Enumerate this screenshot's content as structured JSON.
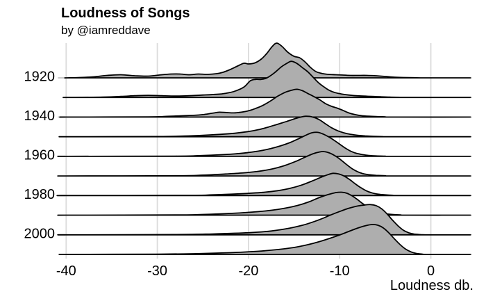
{
  "title": "Loudness of Songs",
  "subtitle": "by @iamreddave",
  "x_axis": {
    "label": "Loudness db.",
    "tick_labels": [
      "-40",
      "-30",
      "-20",
      "-10",
      "0"
    ]
  },
  "y_axis": {
    "tick_labels": [
      "1920",
      "1940",
      "1960",
      "1980",
      "2000"
    ]
  },
  "colors": {
    "ridge_fill": "#AEAEAE",
    "ridge_stroke": "#000000",
    "grid": "#DBDBDB",
    "axis_tick": "#C9C9C9",
    "text": "#000000",
    "background": "#FFFFFF"
  },
  "chart_data": {
    "type": "area",
    "variant": "ridgeline",
    "title": "Loudness of Songs",
    "subtitle": "by @iamreddave",
    "xlabel": "Loudness db.",
    "ylabel": "",
    "xlim": [
      -40.1,
      4.4
    ],
    "x_ticks": [
      -40,
      -30,
      -20,
      -10,
      0
    ],
    "grid": "vertical-only",
    "legend": "none",
    "density_unit": "px-height-relative",
    "rows": [
      {
        "year": "1920",
        "axis_label_shown": true,
        "points": [
          [
            -40,
            0
          ],
          [
            -38.5,
            0.5
          ],
          [
            -37,
            1.5
          ],
          [
            -35.5,
            3.5
          ],
          [
            -34,
            4.5
          ],
          [
            -32.5,
            3
          ],
          [
            -31,
            2.5
          ],
          [
            -29.5,
            4.5
          ],
          [
            -28.5,
            5.5
          ],
          [
            -27.5,
            5.5
          ],
          [
            -26.5,
            4.5
          ],
          [
            -25.5,
            5.5
          ],
          [
            -24.5,
            5
          ],
          [
            -23.5,
            6
          ],
          [
            -22.8,
            8
          ],
          [
            -22,
            12
          ],
          [
            -21.2,
            17
          ],
          [
            -20.5,
            21
          ],
          [
            -20,
            20
          ],
          [
            -19.3,
            21.5
          ],
          [
            -18.6,
            27
          ],
          [
            -18,
            35
          ],
          [
            -17.4,
            45
          ],
          [
            -16.9,
            50
          ],
          [
            -16.3,
            45
          ],
          [
            -15.7,
            37
          ],
          [
            -15,
            31
          ],
          [
            -14.4,
            29
          ],
          [
            -13.8,
            23
          ],
          [
            -13.2,
            15
          ],
          [
            -12.6,
            9
          ],
          [
            -12,
            6.5
          ],
          [
            -11.2,
            5
          ],
          [
            -10.4,
            4.5
          ],
          [
            -9.6,
            4
          ],
          [
            -8.8,
            3.5
          ],
          [
            -8,
            3.5
          ],
          [
            -7,
            3.5
          ],
          [
            -6,
            3
          ],
          [
            -5,
            2
          ],
          [
            -4,
            1
          ],
          [
            -3,
            0.5
          ],
          [
            -1.8,
            0.2
          ],
          [
            -0.5,
            0
          ]
        ]
      },
      {
        "year": "1930",
        "axis_label_shown": false,
        "points": [
          [
            -40,
            0
          ],
          [
            -36,
            0.5
          ],
          [
            -34,
            1.5
          ],
          [
            -32.5,
            2.5
          ],
          [
            -31,
            3
          ],
          [
            -29.5,
            2.5
          ],
          [
            -28,
            2
          ],
          [
            -26.5,
            2.5
          ],
          [
            -25,
            3.5
          ],
          [
            -23.5,
            4.5
          ],
          [
            -22.5,
            6
          ],
          [
            -21.5,
            9
          ],
          [
            -20.5,
            15
          ],
          [
            -19.8,
            24
          ],
          [
            -19.2,
            26
          ],
          [
            -18.6,
            26
          ],
          [
            -18,
            28
          ],
          [
            -17.2,
            35
          ],
          [
            -16.4,
            44
          ],
          [
            -15.8,
            49
          ],
          [
            -15.3,
            52
          ],
          [
            -14.7,
            49
          ],
          [
            -14.1,
            43
          ],
          [
            -13.5,
            37
          ],
          [
            -12.9,
            29
          ],
          [
            -12.3,
            21
          ],
          [
            -11.7,
            15
          ],
          [
            -11.1,
            10
          ],
          [
            -10.5,
            7
          ],
          [
            -9.8,
            5
          ],
          [
            -9,
            3.5
          ],
          [
            -8.2,
            2.5
          ],
          [
            -7.4,
            2
          ],
          [
            -6.5,
            1.5
          ],
          [
            -5.5,
            1
          ],
          [
            -4.5,
            0.5
          ],
          [
            -3.5,
            0.2
          ],
          [
            -2.5,
            0
          ]
        ]
      },
      {
        "year": "1940",
        "axis_label_shown": true,
        "points": [
          [
            -40,
            0
          ],
          [
            -31,
            0.3
          ],
          [
            -29,
            1
          ],
          [
            -27.5,
            1.8
          ],
          [
            -26,
            2.5
          ],
          [
            -25,
            3.5
          ],
          [
            -24,
            5.5
          ],
          [
            -23.2,
            7
          ],
          [
            -22.4,
            6.5
          ],
          [
            -21.6,
            6
          ],
          [
            -20.8,
            7
          ],
          [
            -20,
            9
          ],
          [
            -19.2,
            12.5
          ],
          [
            -18.4,
            17
          ],
          [
            -17.6,
            23
          ],
          [
            -16.8,
            30
          ],
          [
            -16,
            35.5
          ],
          [
            -15.3,
            38.5
          ],
          [
            -14.7,
            40
          ],
          [
            -14.1,
            38
          ],
          [
            -13.5,
            34
          ],
          [
            -12.9,
            30
          ],
          [
            -12.2,
            25
          ],
          [
            -11.5,
            19
          ],
          [
            -10.9,
            15.5
          ],
          [
            -10.3,
            13
          ],
          [
            -9.7,
            10
          ],
          [
            -9,
            6
          ],
          [
            -8.3,
            3.5
          ],
          [
            -7.6,
            2
          ],
          [
            -6.8,
            1.2
          ],
          [
            -6,
            0.7
          ],
          [
            -5,
            0.3
          ],
          [
            -4,
            0
          ]
        ]
      },
      {
        "year": "1950",
        "axis_label_shown": false,
        "points": [
          [
            -40,
            0
          ],
          [
            -30,
            0.3
          ],
          [
            -27,
            1
          ],
          [
            -25,
            2
          ],
          [
            -23,
            3.5
          ],
          [
            -21.5,
            5
          ],
          [
            -20,
            7.5
          ],
          [
            -18.8,
            10.5
          ],
          [
            -17.8,
            14
          ],
          [
            -16.8,
            18
          ],
          [
            -15.8,
            22
          ],
          [
            -14.9,
            26
          ],
          [
            -14.2,
            28.5
          ],
          [
            -13.7,
            29.5
          ],
          [
            -13,
            28.5
          ],
          [
            -12.3,
            25
          ],
          [
            -11.6,
            19
          ],
          [
            -10.9,
            13
          ],
          [
            -10.2,
            8.5
          ],
          [
            -9.5,
            5.5
          ],
          [
            -8.8,
            3.5
          ],
          [
            -8,
            2
          ],
          [
            -7.2,
            1.2
          ],
          [
            -6.3,
            0.6
          ],
          [
            -5.3,
            0.2
          ],
          [
            -4.3,
            0
          ]
        ]
      },
      {
        "year": "1960",
        "axis_label_shown": true,
        "points": [
          [
            -40,
            0
          ],
          [
            -28,
            0.3
          ],
          [
            -25.5,
            1
          ],
          [
            -23.5,
            2
          ],
          [
            -21.5,
            3.5
          ],
          [
            -20,
            5.5
          ],
          [
            -18.7,
            8
          ],
          [
            -17.6,
            11
          ],
          [
            -16.5,
            15
          ],
          [
            -15.4,
            20
          ],
          [
            -14.4,
            26
          ],
          [
            -13.6,
            31
          ],
          [
            -13,
            34
          ],
          [
            -12.4,
            34.5
          ],
          [
            -11.8,
            32
          ],
          [
            -11.2,
            28
          ],
          [
            -10.6,
            23
          ],
          [
            -10,
            17.5
          ],
          [
            -9.4,
            12
          ],
          [
            -8.8,
            7.5
          ],
          [
            -8.2,
            4.5
          ],
          [
            -7.5,
            2.5
          ],
          [
            -6.8,
            1.3
          ],
          [
            -6,
            0.6
          ],
          [
            -5,
            0.2
          ],
          [
            -4.2,
            0
          ]
        ]
      },
      {
        "year": "1970",
        "axis_label_shown": false,
        "points": [
          [
            -40,
            0
          ],
          [
            -28,
            0.3
          ],
          [
            -25,
            1.2
          ],
          [
            -22.5,
            2.8
          ],
          [
            -20.5,
            4.5
          ],
          [
            -19,
            6.5
          ],
          [
            -17.8,
            9
          ],
          [
            -16.8,
            12
          ],
          [
            -15.8,
            16
          ],
          [
            -14.8,
            21
          ],
          [
            -13.8,
            27
          ],
          [
            -12.9,
            32
          ],
          [
            -12.2,
            34.5
          ],
          [
            -11.7,
            35
          ],
          [
            -11.1,
            33
          ],
          [
            -10.5,
            29
          ],
          [
            -9.9,
            23.5
          ],
          [
            -9.3,
            17
          ],
          [
            -8.7,
            11
          ],
          [
            -8.1,
            6.5
          ],
          [
            -7.5,
            3.5
          ],
          [
            -6.8,
            1.8
          ],
          [
            -6,
            0.8
          ],
          [
            -5,
            0.3
          ],
          [
            -4.2,
            0
          ]
        ]
      },
      {
        "year": "1980",
        "axis_label_shown": true,
        "points": [
          [
            -40,
            0
          ],
          [
            -27,
            0.3
          ],
          [
            -24,
            1
          ],
          [
            -21,
            2.5
          ],
          [
            -18.5,
            4.5
          ],
          [
            -16.8,
            7
          ],
          [
            -15.4,
            10.5
          ],
          [
            -14.2,
            15
          ],
          [
            -13.1,
            20.5
          ],
          [
            -12.1,
            26
          ],
          [
            -11.3,
            30
          ],
          [
            -10.7,
            32
          ],
          [
            -10.1,
            31
          ],
          [
            -9.5,
            28
          ],
          [
            -8.9,
            23
          ],
          [
            -8.3,
            17
          ],
          [
            -7.7,
            11.5
          ],
          [
            -7.1,
            7
          ],
          [
            -6.5,
            4
          ],
          [
            -5.8,
            2
          ],
          [
            -5,
            1
          ],
          [
            -4.2,
            0.4
          ],
          [
            -3.4,
            0
          ]
        ]
      },
      {
        "year": "1990",
        "axis_label_shown": false,
        "points": [
          [
            -40,
            0
          ],
          [
            -28,
            0.3
          ],
          [
            -25,
            1
          ],
          [
            -22,
            2.5
          ],
          [
            -19.5,
            4.5
          ],
          [
            -17.5,
            7
          ],
          [
            -16,
            10
          ],
          [
            -14.6,
            14
          ],
          [
            -13.4,
            19
          ],
          [
            -12.3,
            25
          ],
          [
            -11.3,
            29.5
          ],
          [
            -10.4,
            32.5
          ],
          [
            -9.8,
            33
          ],
          [
            -9.2,
            31.5
          ],
          [
            -8.6,
            27.5
          ],
          [
            -8,
            22
          ],
          [
            -7.4,
            16
          ],
          [
            -6.8,
            11
          ],
          [
            -6.2,
            6.5
          ],
          [
            -5.6,
            3.5
          ],
          [
            -4.9,
            1.8
          ],
          [
            -4.1,
            0.8
          ],
          [
            -3.3,
            0.3
          ],
          [
            -2.5,
            0
          ]
        ]
      },
      {
        "year": "2000",
        "axis_label_shown": true,
        "points": [
          [
            -40,
            0
          ],
          [
            -28,
            0.4
          ],
          [
            -24,
            1.2
          ],
          [
            -20,
            3
          ],
          [
            -17.5,
            5.5
          ],
          [
            -15.5,
            9.5
          ],
          [
            -14,
            14
          ],
          [
            -12.8,
            19
          ],
          [
            -11.8,
            24
          ],
          [
            -10.8,
            29.5
          ],
          [
            -9.8,
            34.5
          ],
          [
            -8.9,
            38.5
          ],
          [
            -8,
            41.5
          ],
          [
            -7.2,
            43
          ],
          [
            -6.6,
            43.5
          ],
          [
            -6,
            42
          ],
          [
            -5.4,
            37.5
          ],
          [
            -4.8,
            30
          ],
          [
            -4.2,
            21
          ],
          [
            -3.6,
            13
          ],
          [
            -3,
            6.5
          ],
          [
            -2.4,
            2.8
          ],
          [
            -1.8,
            1
          ],
          [
            -1.1,
            0.3
          ],
          [
            -0.4,
            0
          ]
        ]
      },
      {
        "year": "2010",
        "axis_label_shown": false,
        "points": [
          [
            -40,
            0
          ],
          [
            -30,
            0.4
          ],
          [
            -26,
            1
          ],
          [
            -22,
            2.5
          ],
          [
            -19,
            4.5
          ],
          [
            -16.8,
            7
          ],
          [
            -15,
            10
          ],
          [
            -13.5,
            14
          ],
          [
            -12.2,
            18.5
          ],
          [
            -11,
            23.5
          ],
          [
            -10,
            28
          ],
          [
            -9,
            33
          ],
          [
            -8,
            38
          ],
          [
            -7.1,
            41.5
          ],
          [
            -6.4,
            43
          ],
          [
            -5.8,
            42
          ],
          [
            -5.2,
            38
          ],
          [
            -4.6,
            31
          ],
          [
            -4,
            22.5
          ],
          [
            -3.4,
            14.5
          ],
          [
            -2.8,
            8
          ],
          [
            -2.2,
            3.8
          ],
          [
            -1.6,
            1.5
          ],
          [
            -0.9,
            0.4
          ],
          [
            -0.2,
            0
          ]
        ]
      }
    ]
  }
}
